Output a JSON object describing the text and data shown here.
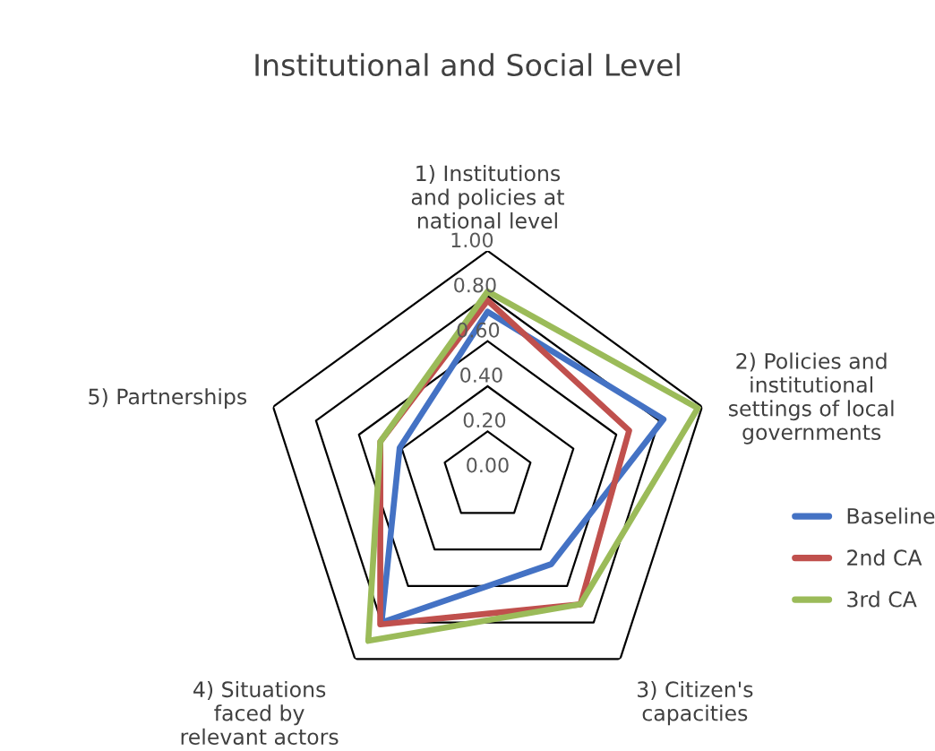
{
  "chart_data": {
    "type": "radar",
    "title": "Institutional and Social Level",
    "categories": [
      "1) Institutions\nand policies at\nnational level",
      "2) Policies and\ninstitutional\nsettings of local\ngovernments",
      "3) Citizen's\ncapacities",
      "4) Situations\nfaced by\nrelevant actors",
      "5) Partnerships"
    ],
    "series": [
      {
        "name": "Baseline",
        "color": "#4472c4",
        "values": [
          0.73,
          0.82,
          0.48,
          0.8,
          0.41
        ]
      },
      {
        "name": "2nd CA",
        "color": "#c0504d",
        "values": [
          0.78,
          0.66,
          0.7,
          0.81,
          0.5
        ]
      },
      {
        "name": "3rd CA",
        "color": "#9bbb59",
        "values": [
          0.82,
          0.98,
          0.7,
          0.9,
          0.5
        ]
      }
    ],
    "ylim": [
      0,
      1
    ],
    "yticks": [
      {
        "value": 0,
        "label": "0.00"
      },
      {
        "value": 0.2,
        "label": "0.20"
      },
      {
        "value": 0.4,
        "label": "0.40"
      },
      {
        "value": 0.6,
        "label": "0.60"
      },
      {
        "value": 0.8,
        "label": "0.80"
      },
      {
        "value": 1,
        "label": "1.00"
      }
    ],
    "grid": true,
    "legend": "right",
    "marker": "none",
    "line_style": "solid"
  }
}
